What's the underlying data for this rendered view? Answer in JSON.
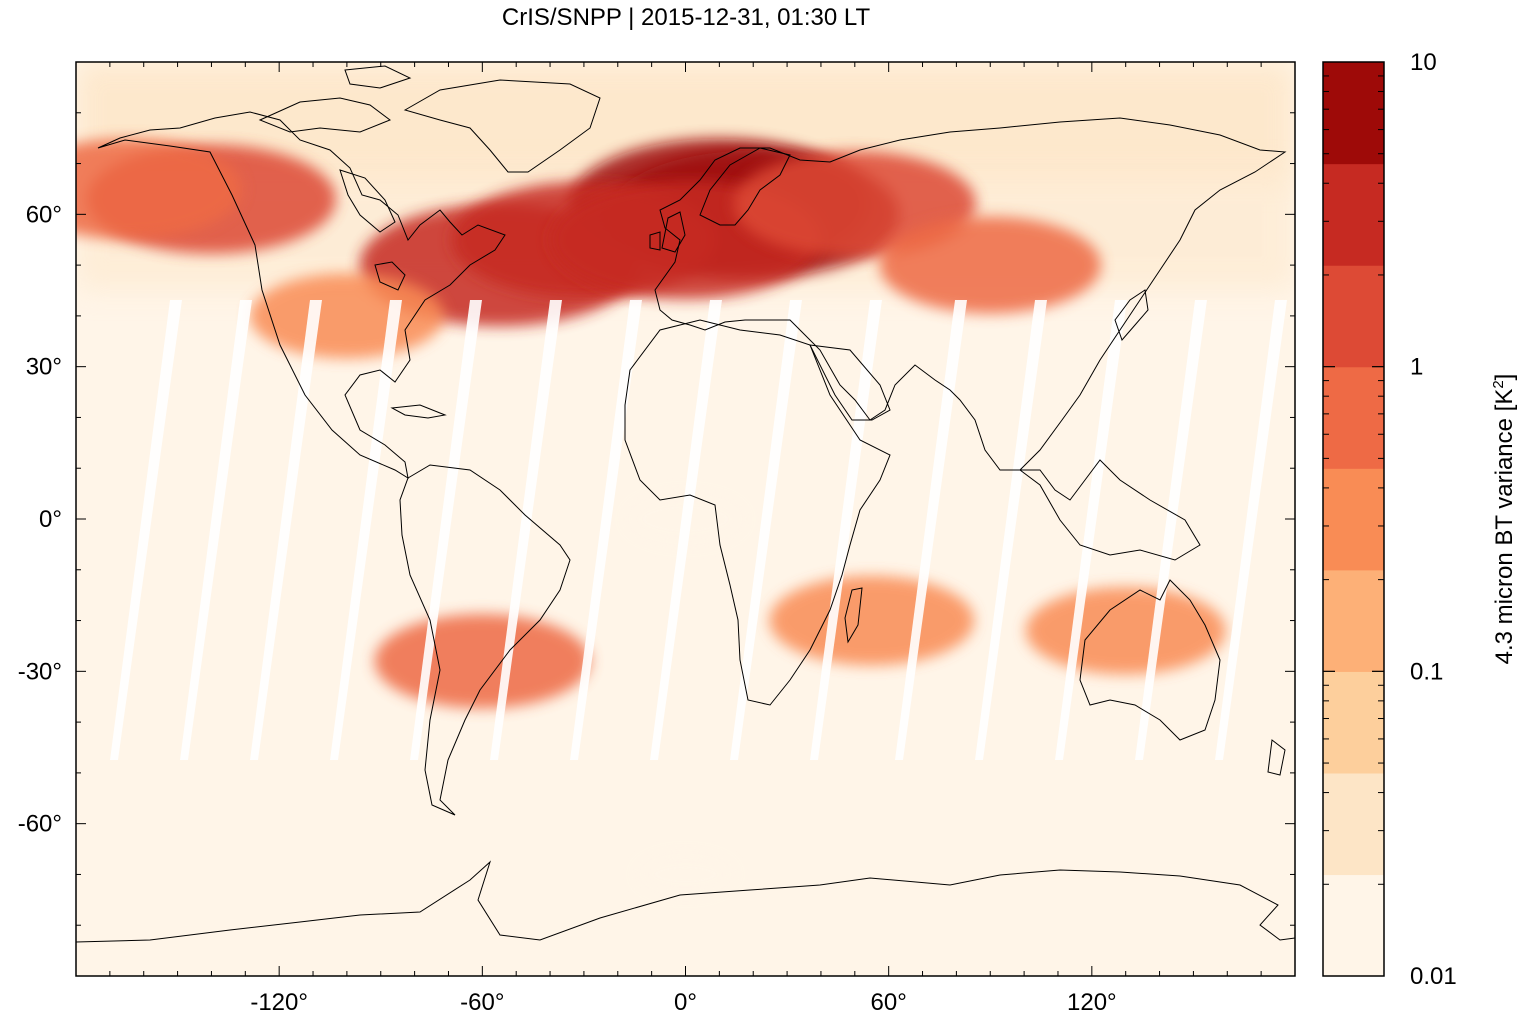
{
  "title": "CrIS/SNPP | 2015-12-31, 01:30 LT",
  "map": {
    "projection": "equirectangular",
    "lon_range": [
      -180,
      180
    ],
    "lat_range": [
      -90,
      90
    ],
    "x_ticks": [
      {
        "value": -120,
        "label": "-120°"
      },
      {
        "value": -60,
        "label": "-60°"
      },
      {
        "value": 0,
        "label": "0°"
      },
      {
        "value": 60,
        "label": "60°"
      },
      {
        "value": 120,
        "label": "120°"
      }
    ],
    "y_ticks": [
      {
        "value": 60,
        "label": "60°"
      },
      {
        "value": 30,
        "label": "30°"
      },
      {
        "value": 0,
        "label": "0°"
      },
      {
        "value": -30,
        "label": "-30°"
      },
      {
        "value": -60,
        "label": "-60°"
      }
    ],
    "coastline_color": "#000000",
    "background_color": "#fff5e8",
    "gap_color": "#ffffff"
  },
  "colorbar": {
    "label": "4.3 micron BT variance [K",
    "label_sup": "2",
    "label_close": "]",
    "scale": "log",
    "range": [
      0.01,
      10
    ],
    "tick_labels": [
      {
        "value": 10,
        "label": "10"
      },
      {
        "value": 1,
        "label": "1"
      },
      {
        "value": 0.1,
        "label": "0.1"
      },
      {
        "value": 0.01,
        "label": "0.01"
      }
    ],
    "colors": [
      "#fff5e8",
      "#fde5c6",
      "#fdcf9c",
      "#fdb077",
      "#f98c55",
      "#ee6a45",
      "#dd4a35",
      "#c62a22",
      "#9e0a08"
    ]
  },
  "chart_data": {
    "type": "heatmap",
    "title": "CrIS/SNPP | 2015-12-31, 01:30 LT",
    "xlabel": "",
    "ylabel": "",
    "xlim": [
      -180,
      180
    ],
    "ylim": [
      -90,
      90
    ],
    "colorbar_label": "4.3 micron BT variance [K^2]",
    "colorbar_range": [
      0.01,
      10
    ],
    "colorbar_scale": "log",
    "regions": [
      {
        "lon": 10,
        "lat": 62,
        "variance": 8
      },
      {
        "lon": 20,
        "lat": 60,
        "variance": 6
      },
      {
        "lon": -55,
        "lat": 50,
        "variance": 4
      },
      {
        "lon": -30,
        "lat": 55,
        "variance": 2.5
      },
      {
        "lon": 0,
        "lat": 55,
        "variance": 3
      },
      {
        "lon": 50,
        "lat": 62,
        "variance": 1.2
      },
      {
        "lon": -140,
        "lat": 63,
        "variance": 1.5
      },
      {
        "lon": -165,
        "lat": 65,
        "variance": 0.8
      },
      {
        "lon": 90,
        "lat": 50,
        "variance": 0.6
      },
      {
        "lon": -60,
        "lat": -28,
        "variance": 0.5
      },
      {
        "lon": 55,
        "lat": -20,
        "variance": 0.35
      },
      {
        "lon": 130,
        "lat": -22,
        "variance": 0.3
      },
      {
        "lon": -100,
        "lat": 40,
        "variance": 0.25
      },
      {
        "lon": 0,
        "lat": 0,
        "variance": 0.02
      },
      {
        "lon": 0,
        "lat": -70,
        "variance": 0.01
      }
    ]
  }
}
